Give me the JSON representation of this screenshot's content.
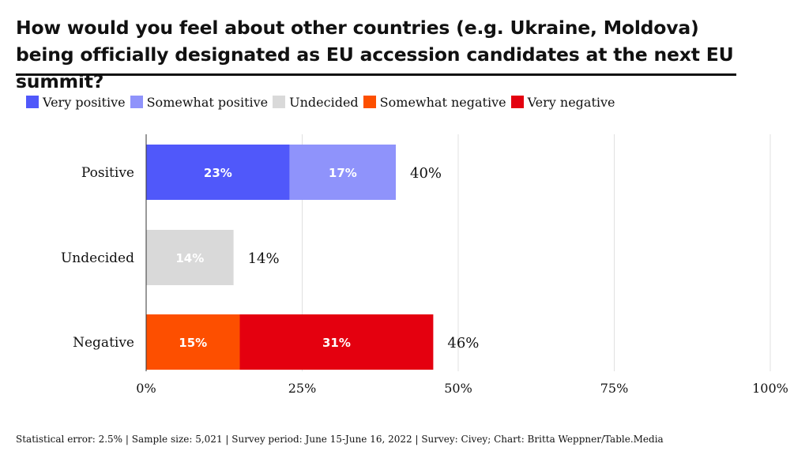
{
  "title": "How would you feel about other countries (e.g. Ukraine, Moldova) being officially designated as EU accession candidates at the next EU summit?",
  "footer": "Statistical error: 2.5% | Sample size: 5,021 | Survey period: June 15-June 16, 2022 | Survey: Civey; Chart: Britta Weppner/Table.Media",
  "legend": [
    {
      "label": "Very positive",
      "color": "#5058fa"
    },
    {
      "label": "Somewhat positive",
      "color": "#8f93fb"
    },
    {
      "label": "Undecided",
      "color": "#d9d9d9"
    },
    {
      "label": "Somewhat negative",
      "color": "#fd4f00"
    },
    {
      "label": "Very negative",
      "color": "#e4000f"
    }
  ],
  "chart_data": {
    "type": "bar",
    "orientation": "horizontal",
    "stacked": true,
    "categories": [
      "Positive",
      "Undecided",
      "Negative"
    ],
    "rows": [
      {
        "category": "Positive",
        "total_label": "40%",
        "segments": [
          {
            "series": "Very positive",
            "value": 23,
            "label": "23%",
            "color": "#5058fa"
          },
          {
            "series": "Somewhat positive",
            "value": 17,
            "label": "17%",
            "color": "#8f93fb"
          }
        ]
      },
      {
        "category": "Undecided",
        "total_label": "14%",
        "segments": [
          {
            "series": "Undecided",
            "value": 14,
            "label": "14%",
            "color": "#d9d9d9"
          }
        ]
      },
      {
        "category": "Negative",
        "total_label": "46%",
        "segments": [
          {
            "series": "Somewhat negative",
            "value": 15,
            "label": "15%",
            "color": "#fd4f00"
          },
          {
            "series": "Very negative",
            "value": 31,
            "label": "31%",
            "color": "#e4000f"
          }
        ]
      }
    ],
    "x_ticks": [
      0,
      25,
      50,
      75,
      100
    ],
    "x_tick_labels": [
      "0%",
      "25%",
      "50%",
      "75%",
      "100%"
    ],
    "xlim": [
      0,
      100
    ],
    "grid": true,
    "legend_position": "top-left"
  }
}
